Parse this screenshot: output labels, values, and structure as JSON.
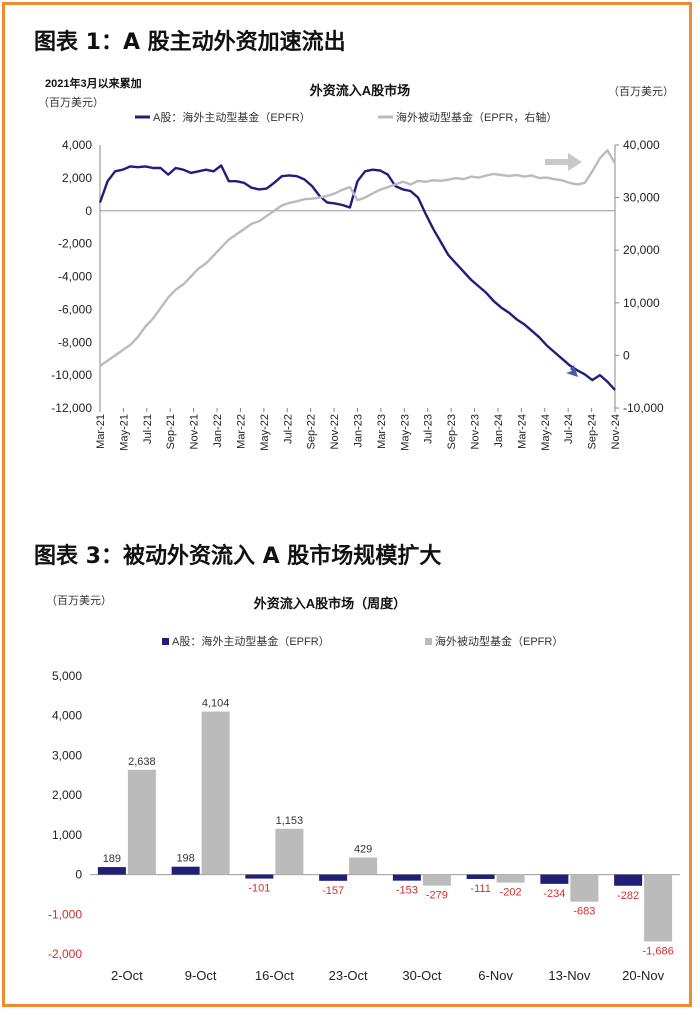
{
  "figure1": {
    "heading": "图表 1：A 股主动外资加速流出",
    "chart_data": {
      "type": "line",
      "title": "外资流入A股市场",
      "note": "2021年3月以来累加",
      "left_unit": "（百万美元）",
      "right_unit": "（百万美元）",
      "x_ticks": [
        "Mar-21",
        "May-21",
        "Jul-21",
        "Sep-21",
        "Nov-21",
        "Jan-22",
        "Mar-22",
        "May-22",
        "Jul-22",
        "Sep-22",
        "Nov-22",
        "Jan-23",
        "Mar-23",
        "May-23",
        "Jul-23",
        "Sep-23",
        "Nov-23",
        "Jan-24",
        "Mar-24",
        "May-24",
        "Jul-24",
        "Sep-24",
        "Nov-24"
      ],
      "ylim_left": [
        -12000,
        4000
      ],
      "yticks_left": [
        "4,000",
        "2,000",
        "0",
        "-2,000",
        "-4,000",
        "-6,000",
        "-8,000",
        "-10,000",
        "-12,000"
      ],
      "ylim_right": [
        -10000,
        40000
      ],
      "yticks_right": [
        "40,000",
        "30,000",
        "20,000",
        "10,000",
        "0",
        "-10,000"
      ],
      "series": [
        {
          "name": "A股：海外主动型基金（EPFR）",
          "axis": "left",
          "color": "#1f1f7a",
          "points": [
            [
              0,
              500
            ],
            [
              0.5,
              1800
            ],
            [
              1,
              2400
            ],
            [
              1.5,
              2500
            ],
            [
              2,
              2700
            ],
            [
              2.5,
              2650
            ],
            [
              3,
              2700
            ],
            [
              3.5,
              2600
            ],
            [
              4,
              2600
            ],
            [
              4.5,
              2200
            ],
            [
              5,
              2600
            ],
            [
              5.5,
              2500
            ],
            [
              6,
              2300
            ],
            [
              6.5,
              2400
            ],
            [
              7,
              2500
            ],
            [
              7.5,
              2400
            ],
            [
              8,
              2750
            ],
            [
              8.5,
              1800
            ],
            [
              9,
              1800
            ],
            [
              9.5,
              1700
            ],
            [
              10,
              1400
            ],
            [
              10.5,
              1300
            ],
            [
              11,
              1350
            ],
            [
              11.5,
              1700
            ],
            [
              12,
              2100
            ],
            [
              12.5,
              2150
            ],
            [
              13,
              2100
            ],
            [
              13.5,
              1900
            ],
            [
              14,
              1500
            ],
            [
              14.5,
              900
            ],
            [
              15,
              500
            ],
            [
              15.5,
              450
            ],
            [
              16,
              350
            ],
            [
              16.5,
              200
            ],
            [
              17,
              1800
            ],
            [
              17.5,
              2400
            ],
            [
              18,
              2500
            ],
            [
              18.5,
              2450
            ],
            [
              19,
              2200
            ],
            [
              19.5,
              1500
            ],
            [
              20,
              1300
            ],
            [
              20.5,
              1200
            ],
            [
              21,
              800
            ],
            [
              21.5,
              -200
            ],
            [
              22,
              -1100
            ],
            [
              22.5,
              -1900
            ],
            [
              23,
              -2700
            ],
            [
              23.5,
              -3200
            ],
            [
              24,
              -3700
            ],
            [
              24.5,
              -4200
            ],
            [
              25,
              -4600
            ],
            [
              25.5,
              -5000
            ],
            [
              26,
              -5500
            ],
            [
              26.5,
              -5900
            ],
            [
              27,
              -6200
            ],
            [
              27.5,
              -6600
            ],
            [
              28,
              -6900
            ],
            [
              28.5,
              -7300
            ],
            [
              29,
              -7700
            ],
            [
              29.5,
              -8200
            ],
            [
              30,
              -8600
            ],
            [
              30.5,
              -9000
            ],
            [
              31,
              -9400
            ],
            [
              31.5,
              -9700
            ],
            [
              32,
              -9950
            ],
            [
              32.5,
              -10300
            ],
            [
              33,
              -10000
            ],
            [
              33.5,
              -10400
            ],
            [
              34,
              -10900
            ]
          ]
        },
        {
          "name": "海外被动型基金（EPFR，右轴）",
          "axis": "right",
          "color": "#bbbbbb",
          "points": [
            [
              0,
              -2000
            ],
            [
              0.5,
              -1000
            ],
            [
              1,
              0
            ],
            [
              1.5,
              1000
            ],
            [
              2,
              2000
            ],
            [
              2.5,
              3500
            ],
            [
              3,
              5500
            ],
            [
              3.5,
              7000
            ],
            [
              4,
              9000
            ],
            [
              4.5,
              11000
            ],
            [
              5,
              12500
            ],
            [
              5.5,
              13500
            ],
            [
              6,
              15000
            ],
            [
              6.5,
              16500
            ],
            [
              7,
              17500
            ],
            [
              7.5,
              19000
            ],
            [
              8,
              20500
            ],
            [
              8.5,
              22000
            ],
            [
              9,
              23000
            ],
            [
              9.5,
              24000
            ],
            [
              10,
              25000
            ],
            [
              10.5,
              25500
            ],
            [
              11,
              26500
            ],
            [
              11.5,
              27500
            ],
            [
              12,
              28500
            ],
            [
              12.5,
              29000
            ],
            [
              13,
              29300
            ],
            [
              13.5,
              29700
            ],
            [
              14,
              29800
            ],
            [
              14.5,
              30000
            ],
            [
              15,
              30300
            ],
            [
              15.5,
              30800
            ],
            [
              16,
              31500
            ],
            [
              16.5,
              32000
            ],
            [
              17,
              29500
            ],
            [
              17.5,
              30000
            ],
            [
              18,
              30800
            ],
            [
              18.5,
              31500
            ],
            [
              19,
              32000
            ],
            [
              19.5,
              32500
            ],
            [
              20,
              33000
            ],
            [
              20.5,
              32500
            ],
            [
              21,
              33200
            ],
            [
              21.5,
              33000
            ],
            [
              22,
              33300
            ],
            [
              22.5,
              33200
            ],
            [
              23,
              33400
            ],
            [
              23.5,
              33700
            ],
            [
              24,
              33500
            ],
            [
              24.5,
              34000
            ],
            [
              25,
              33800
            ],
            [
              25.5,
              34200
            ],
            [
              26,
              34500
            ],
            [
              26.5,
              34300
            ],
            [
              27,
              34100
            ],
            [
              27.5,
              34300
            ],
            [
              28,
              34000
            ],
            [
              28.5,
              34200
            ],
            [
              29,
              33700
            ],
            [
              29.5,
              33800
            ],
            [
              30,
              33500
            ],
            [
              30.5,
              33300
            ],
            [
              31,
              32800
            ],
            [
              31.5,
              32500
            ],
            [
              32,
              32800
            ],
            [
              32.5,
              35000
            ],
            [
              33,
              37500
            ],
            [
              33.5,
              39000
            ],
            [
              34,
              36500
            ]
          ]
        }
      ]
    }
  },
  "figure3": {
    "heading": "图表 3：被动外资流入 A 股市场规模扩大",
    "chart_data": {
      "type": "bar",
      "title": "外资流入A股市场（周度）",
      "y_unit": "（百万美元）",
      "categories": [
        "2-Oct",
        "9-Oct",
        "16-Oct",
        "23-Oct",
        "30-Oct",
        "6-Nov",
        "13-Nov",
        "20-Nov"
      ],
      "ylim": [
        -2000,
        5000
      ],
      "yticks": [
        "5,000",
        "4,000",
        "3,000",
        "2,000",
        "1,000",
        "0",
        "-1,000",
        "-2,000"
      ],
      "series": [
        {
          "name": "A股：海外主动型基金（EPFR）",
          "color": "#1f1f7a",
          "values": [
            189,
            198,
            -101,
            -157,
            -153,
            -111,
            -234,
            -282
          ],
          "labels": [
            "189",
            "198",
            "-101",
            "-157",
            "-153",
            "-111",
            "-234",
            "-282"
          ]
        },
        {
          "name": "海外被动型基金（EPFR）",
          "color": "#bbbbbb",
          "values": [
            2638,
            4104,
            1153,
            429,
            -279,
            -202,
            -683,
            -1686
          ],
          "labels": [
            "2,638",
            "4,104",
            "1,153",
            "429",
            "-279",
            "-202",
            "-683",
            "-1,686"
          ]
        }
      ],
      "negative_label_color": "#d32f2f"
    }
  }
}
